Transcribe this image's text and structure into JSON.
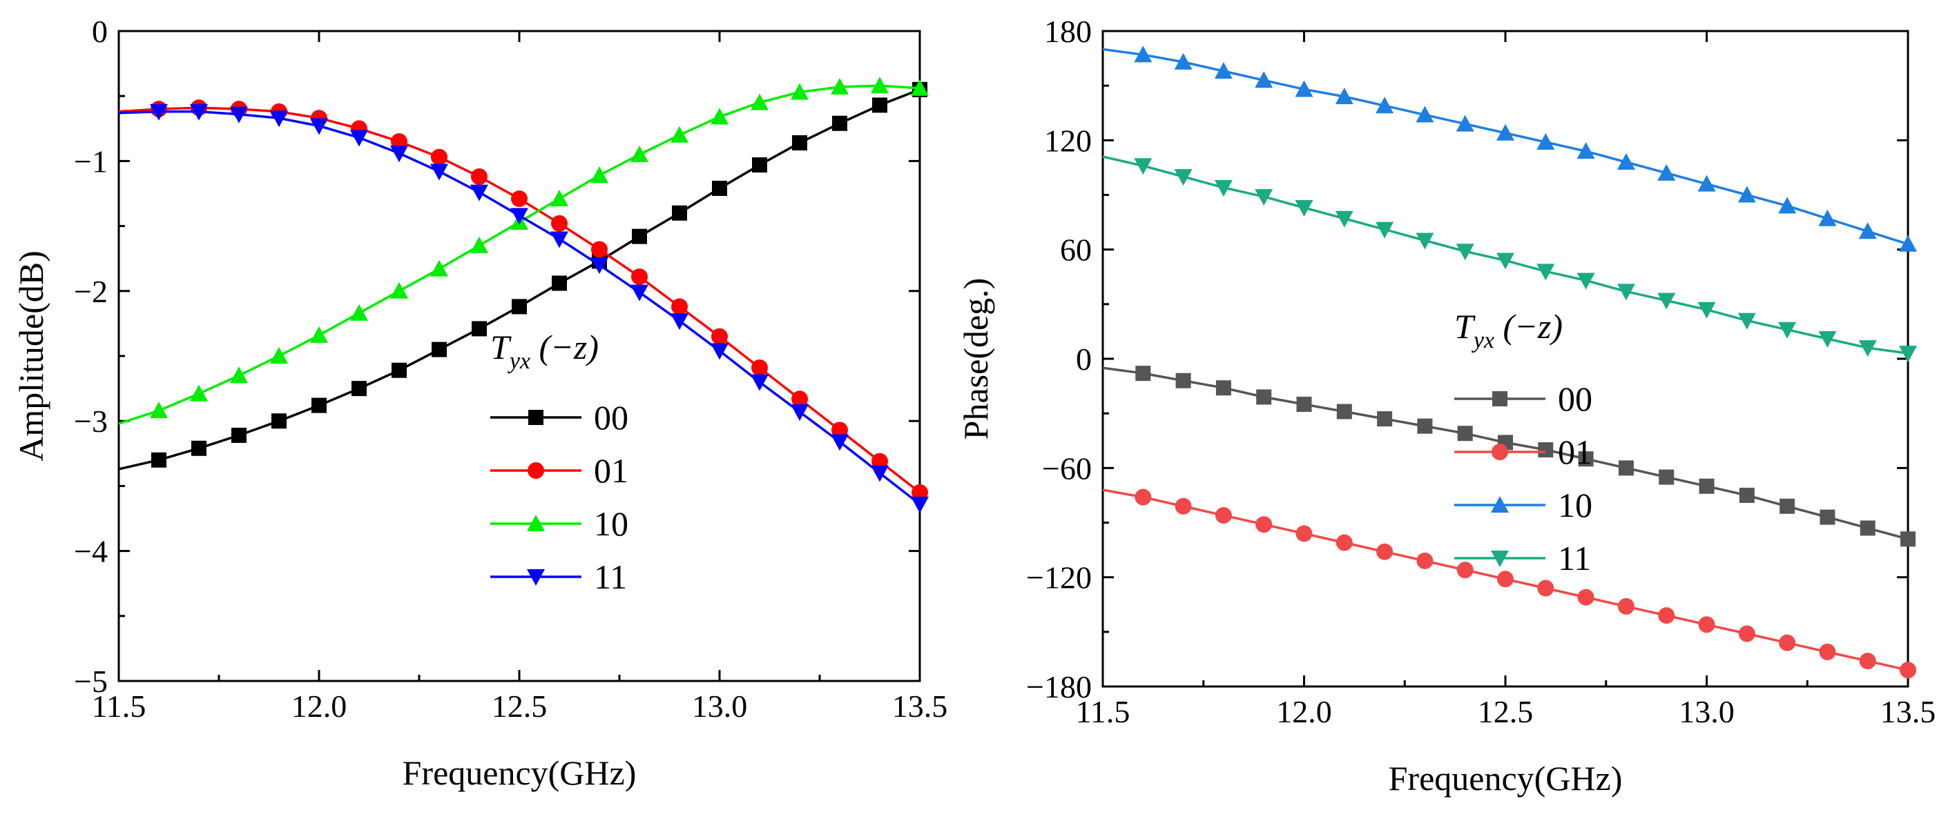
{
  "chart_data": [
    {
      "type": "line",
      "xlabel": "Frequency(GHz)",
      "ylabel": "Amplitude(dB)",
      "xlim": [
        11.5,
        13.5
      ],
      "ylim": [
        -5,
        0
      ],
      "xticks": [
        11.5,
        12.0,
        12.5,
        13.0,
        13.5
      ],
      "xtick_labels": [
        "11.5",
        "12.0",
        "12.5",
        "13.0",
        "13.5"
      ],
      "yticks": [
        -5,
        -4,
        -3,
        -2,
        -1,
        0
      ],
      "ytick_labels": [
        "−5",
        "−4",
        "−3",
        "−2",
        "−1",
        "0"
      ],
      "legend_title_main": "T",
      "legend_title_sub": "yx",
      "legend_title_rest": " (−z)",
      "legend_position": "center-left",
      "x": [
        11.5,
        11.6,
        11.7,
        11.8,
        11.9,
        12.0,
        12.1,
        12.2,
        12.3,
        12.4,
        12.5,
        12.6,
        12.7,
        12.8,
        12.9,
        13.0,
        13.1,
        13.2,
        13.3,
        13.4,
        13.5
      ],
      "series": [
        {
          "name": "00",
          "color": "#000000",
          "marker": "square",
          "values": [
            -3.37,
            -3.3,
            -3.21,
            -3.11,
            -3.0,
            -2.88,
            -2.75,
            -2.61,
            -2.45,
            -2.29,
            -2.12,
            -1.94,
            -1.77,
            -1.58,
            -1.4,
            -1.21,
            -1.03,
            -0.86,
            -0.71,
            -0.57,
            -0.45
          ]
        },
        {
          "name": "01",
          "color": "#ff0000",
          "marker": "circle",
          "values": [
            -0.62,
            -0.6,
            -0.59,
            -0.6,
            -0.62,
            -0.67,
            -0.75,
            -0.85,
            -0.97,
            -1.12,
            -1.29,
            -1.48,
            -1.68,
            -1.89,
            -2.12,
            -2.35,
            -2.59,
            -2.83,
            -3.07,
            -3.31,
            -3.55
          ]
        },
        {
          "name": "10",
          "color": "#00ee00",
          "marker": "triangle-up",
          "values": [
            -3.02,
            -2.92,
            -2.79,
            -2.65,
            -2.5,
            -2.34,
            -2.17,
            -2.0,
            -1.83,
            -1.65,
            -1.47,
            -1.29,
            -1.11,
            -0.95,
            -0.8,
            -0.66,
            -0.55,
            -0.47,
            -0.43,
            -0.42,
            -0.44
          ]
        },
        {
          "name": "11",
          "color": "#0000ff",
          "marker": "triangle-down",
          "values": [
            -0.63,
            -0.62,
            -0.62,
            -0.64,
            -0.67,
            -0.73,
            -0.82,
            -0.94,
            -1.08,
            -1.24,
            -1.42,
            -1.6,
            -1.8,
            -2.01,
            -2.23,
            -2.46,
            -2.7,
            -2.93,
            -3.16,
            -3.4,
            -3.64
          ]
        }
      ]
    },
    {
      "type": "line",
      "xlabel": "Frequency(GHz)",
      "ylabel": "Phase(deg.)",
      "xlim": [
        11.5,
        13.5
      ],
      "ylim": [
        -180,
        180
      ],
      "xticks": [
        11.5,
        12.0,
        12.5,
        13.0,
        13.5
      ],
      "xtick_labels": [
        "11.5",
        "12.0",
        "12.5",
        "13.0",
        "13.5"
      ],
      "yticks": [
        -180,
        -120,
        -60,
        0,
        60,
        120,
        180
      ],
      "ytick_labels": [
        "−180",
        "−120",
        "−60",
        "0",
        "60",
        "120",
        "180"
      ],
      "legend_title_main": "T",
      "legend_title_sub": "yx",
      "legend_title_rest": " (−z)",
      "legend_position": "center",
      "x": [
        11.5,
        11.6,
        11.7,
        11.8,
        11.9,
        12.0,
        12.1,
        12.2,
        12.3,
        12.4,
        12.5,
        12.6,
        12.7,
        12.8,
        12.9,
        13.0,
        13.1,
        13.2,
        13.3,
        13.4,
        13.5
      ],
      "series": [
        {
          "name": "00",
          "color": "#555555",
          "marker": "square",
          "values": [
            -5,
            -8,
            -12,
            -16,
            -21,
            -25,
            -29,
            -33,
            -37,
            -41,
            -46,
            -50,
            -55,
            -60,
            -65,
            -70,
            -75,
            -81,
            -87,
            -93,
            -99
          ]
        },
        {
          "name": "01",
          "color": "#f04848",
          "marker": "circle",
          "values": [
            -72,
            -76,
            -81,
            -86,
            -91,
            -96,
            -101,
            -106,
            -111,
            -116,
            -121,
            -126,
            -131,
            -136,
            -141,
            -146,
            -151,
            -156,
            -161,
            -166,
            -171
          ]
        },
        {
          "name": "10",
          "color": "#1e7fe0",
          "marker": "triangle-up",
          "values": [
            170,
            167,
            163,
            158,
            153,
            148,
            144,
            139,
            134,
            129,
            124,
            119,
            114,
            108,
            102,
            96,
            90,
            84,
            77,
            70,
            63
          ]
        },
        {
          "name": "11",
          "color": "#1aab82",
          "marker": "triangle-down",
          "values": [
            111,
            106,
            100,
            94,
            89,
            83,
            77,
            71,
            65,
            59,
            54,
            48,
            43,
            37,
            32,
            27,
            21,
            16,
            11,
            6,
            3
          ]
        }
      ]
    }
  ]
}
